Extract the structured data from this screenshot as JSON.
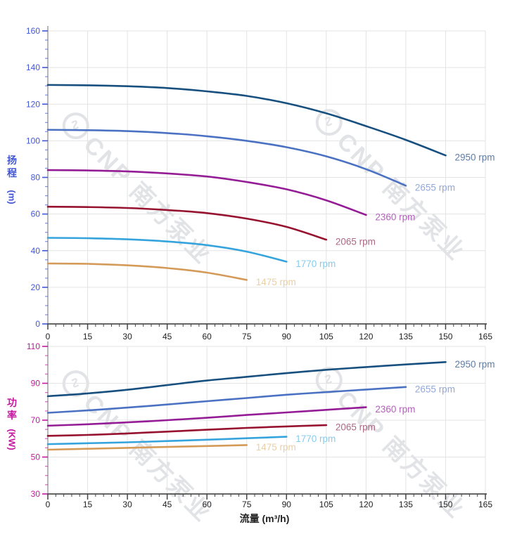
{
  "watermark": {
    "logo_char": "∿",
    "text": "CNP 南方泵业"
  },
  "style": {
    "background": "#ffffff",
    "grid_color": "#e3e3e3",
    "y_axis_line_color": "#9a9aa0",
    "x_axis_line_color": "#333333",
    "x_tick_color": "#444444",
    "x_label_color": "#222222"
  },
  "chart_data": {
    "type": "line",
    "flow_axis": {
      "label": "流量 (m³/h)",
      "min": 0,
      "max": 165,
      "major_step": 15,
      "minor_step": 3,
      "ticks": [
        0,
        15,
        30,
        45,
        60,
        75,
        90,
        105,
        120,
        135,
        150,
        165
      ]
    },
    "charts": [
      {
        "id": "head",
        "ylabel": "扬程",
        "ylabel_unit": "(m)",
        "axis_color": "#4156d4",
        "ylim": [
          0,
          160
        ],
        "major_step": 20,
        "minor_step": 5,
        "yticks": [
          0,
          20,
          40,
          60,
          80,
          100,
          120,
          140,
          160
        ],
        "series": [
          {
            "name": "2950 rpm",
            "rpm": 2950,
            "color": "#174f7f",
            "label_color": "#5e7ca6",
            "points": [
              [
                0,
                130.5
              ],
              [
                15,
                130.3
              ],
              [
                30,
                129.8
              ],
              [
                45,
                128.8
              ],
              [
                60,
                127
              ],
              [
                75,
                124.5
              ],
              [
                90,
                120.5
              ],
              [
                105,
                115
              ],
              [
                120,
                108
              ],
              [
                135,
                100.5
              ],
              [
                150,
                92
              ]
            ]
          },
          {
            "name": "2655 rpm",
            "rpm": 2655,
            "color": "#4b72c2",
            "label_color": "#93a9d9",
            "points": [
              [
                0,
                106
              ],
              [
                15,
                105.8
              ],
              [
                30,
                105.3
              ],
              [
                45,
                104.2
              ],
              [
                60,
                102.5
              ],
              [
                75,
                100
              ],
              [
                90,
                96.5
              ],
              [
                105,
                91.5
              ],
              [
                120,
                84.5
              ],
              [
                135,
                75.5
              ]
            ]
          },
          {
            "name": "2360 rpm",
            "rpm": 2360,
            "color": "#941d96",
            "label_color": "#b262ba",
            "points": [
              [
                0,
                84
              ],
              [
                15,
                83.8
              ],
              [
                30,
                83.3
              ],
              [
                45,
                82.2
              ],
              [
                60,
                80.5
              ],
              [
                75,
                77.5
              ],
              [
                90,
                73.5
              ],
              [
                105,
                67.5
              ],
              [
                120,
                59.5
              ]
            ]
          },
          {
            "name": "2065 rpm",
            "rpm": 2065,
            "color": "#96122f",
            "label_color": "#ab6a84",
            "points": [
              [
                0,
                64
              ],
              [
                15,
                63.8
              ],
              [
                30,
                63.3
              ],
              [
                45,
                62.2
              ],
              [
                60,
                60.5
              ],
              [
                75,
                57.5
              ],
              [
                90,
                53
              ],
              [
                105,
                46
              ]
            ]
          },
          {
            "name": "1770 rpm",
            "rpm": 1770,
            "color": "#35a3dc",
            "label_color": "#86ccee",
            "points": [
              [
                0,
                47
              ],
              [
                15,
                46.8
              ],
              [
                30,
                46.2
              ],
              [
                45,
                45
              ],
              [
                60,
                43
              ],
              [
                75,
                39.5
              ],
              [
                90,
                34
              ]
            ]
          },
          {
            "name": "1475 rpm",
            "rpm": 1475,
            "color": "#d49a58",
            "label_color": "#e9cfa7",
            "points": [
              [
                0,
                33
              ],
              [
                15,
                32.8
              ],
              [
                30,
                32
              ],
              [
                45,
                30.5
              ],
              [
                60,
                28
              ],
              [
                75,
                24
              ]
            ]
          }
        ]
      },
      {
        "id": "power",
        "ylabel": "功率",
        "ylabel_unit": "(KW)",
        "axis_color": "#c2189e",
        "ylim": [
          30,
          110
        ],
        "major_step": 20,
        "minor_step": 5,
        "yticks": [
          30,
          50,
          70,
          90,
          110
        ],
        "series": [
          {
            "name": "2950 rpm",
            "rpm": 2950,
            "color": "#174f7f",
            "label_color": "#5e7ca6",
            "points": [
              [
                0,
                83
              ],
              [
                15,
                84.5
              ],
              [
                30,
                86.5
              ],
              [
                45,
                89
              ],
              [
                60,
                91.5
              ],
              [
                75,
                93.5
              ],
              [
                90,
                95.5
              ],
              [
                105,
                97.3
              ],
              [
                120,
                98.8
              ],
              [
                135,
                100.2
              ],
              [
                150,
                101.5
              ]
            ]
          },
          {
            "name": "2655 rpm",
            "rpm": 2655,
            "color": "#4b72c2",
            "label_color": "#93a9d9",
            "points": [
              [
                0,
                74
              ],
              [
                15,
                75.3
              ],
              [
                30,
                76.8
              ],
              [
                45,
                78.5
              ],
              [
                60,
                80.3
              ],
              [
                75,
                82
              ],
              [
                90,
                83.8
              ],
              [
                105,
                85.2
              ],
              [
                120,
                86.6
              ],
              [
                135,
                88
              ]
            ]
          },
          {
            "name": "2360 rpm",
            "rpm": 2360,
            "color": "#941d96",
            "label_color": "#b262ba",
            "points": [
              [
                0,
                67
              ],
              [
                15,
                67.8
              ],
              [
                30,
                68.8
              ],
              [
                45,
                70
              ],
              [
                60,
                71.3
              ],
              [
                75,
                72.8
              ],
              [
                90,
                74.2
              ],
              [
                105,
                75.6
              ],
              [
                120,
                77
              ]
            ]
          },
          {
            "name": "2065 rpm",
            "rpm": 2065,
            "color": "#96122f",
            "label_color": "#ab6a84",
            "points": [
              [
                0,
                61.5
              ],
              [
                15,
                62
              ],
              [
                30,
                62.8
              ],
              [
                45,
                63.8
              ],
              [
                60,
                64.8
              ],
              [
                75,
                65.8
              ],
              [
                90,
                66.6
              ],
              [
                105,
                67.3
              ]
            ]
          },
          {
            "name": "1770 rpm",
            "rpm": 1770,
            "color": "#35a3dc",
            "label_color": "#86ccee",
            "points": [
              [
                0,
                57
              ],
              [
                15,
                57.5
              ],
              [
                30,
                58
              ],
              [
                45,
                58.7
              ],
              [
                60,
                59.4
              ],
              [
                75,
                60.2
              ],
              [
                90,
                61
              ]
            ]
          },
          {
            "name": "1475 rpm",
            "rpm": 1475,
            "color": "#d49a58",
            "label_color": "#e9cfa7",
            "points": [
              [
                0,
                54
              ],
              [
                15,
                54.5
              ],
              [
                30,
                55
              ],
              [
                45,
                55.5
              ],
              [
                60,
                56
              ],
              [
                75,
                56.5
              ]
            ]
          }
        ]
      }
    ]
  }
}
